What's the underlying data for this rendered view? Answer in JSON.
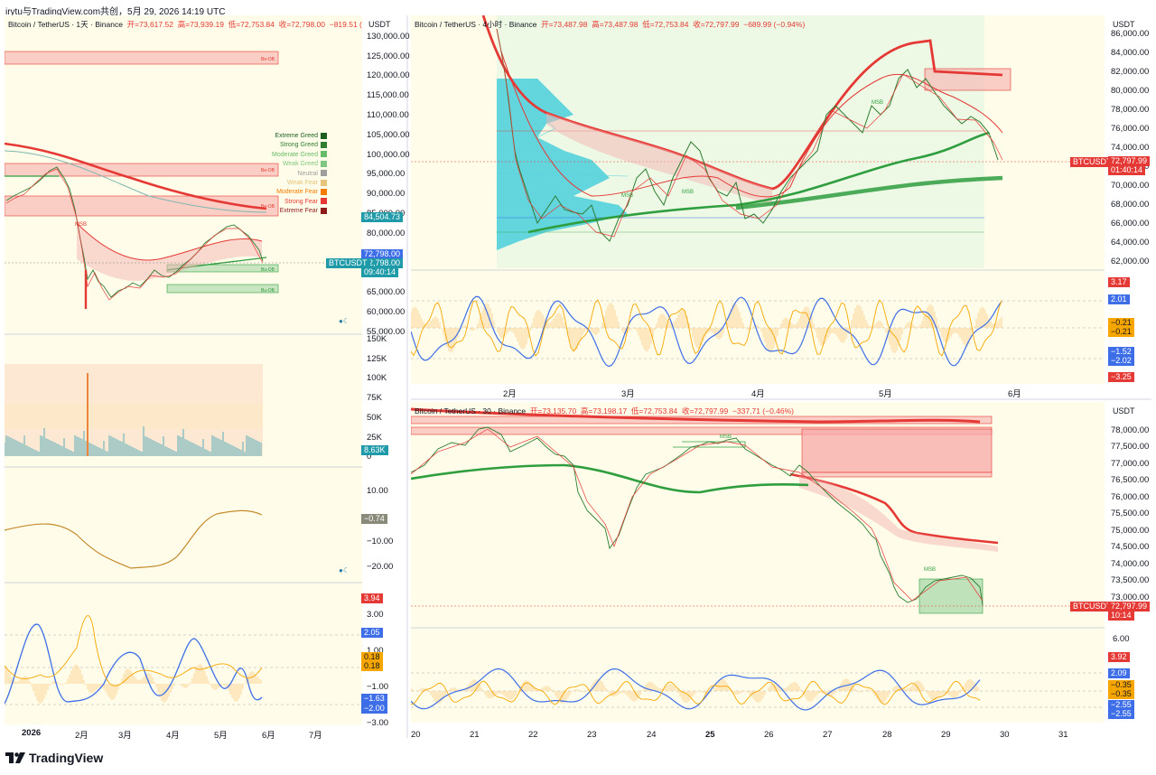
{
  "header": {
    "text": "irytu与TradingView.com共创，5月 29, 2026 14:19 UTC"
  },
  "brand": {
    "name": "TradingView",
    "icon": "tradingview-logo-icon"
  },
  "colors": {
    "bg": "#fffde9",
    "red": "#e53935",
    "green": "#2e9e3f",
    "blue": "#3d6ee8",
    "orange": "#f7a600",
    "teal": "#26c6da"
  },
  "left_chart": {
    "title_pre": "Bitcoin / TetherUS · 1天 · Binance",
    "o": "开=73,617.52",
    "h": "高=73,939.19",
    "l": "低=72,753.84",
    "c": "收=72,798.00",
    "chg": "−819.51 (−1.11%)",
    "currency": "USDT",
    "price_ticks": [
      "130,000.00",
      "125,000.00",
      "120,000.00",
      "115,000.00",
      "110,000.00",
      "105,000.00",
      "100,000.00",
      "95,000.00",
      "90,000.00",
      "85,000.00",
      "80,000.00",
      "65,000.00",
      "60,000.00",
      "55,000.00"
    ],
    "badge_84": "84,504.73",
    "badge_price": "72,798.00",
    "badge_price2": "72,798.00",
    "badge_time": "09:40:14",
    "badge_sym": "BTCUSDT",
    "fg_legend": [
      {
        "label": "Extreme Greed",
        "color": "#1b5e20"
      },
      {
        "label": "Strong Greed",
        "color": "#2e7d32"
      },
      {
        "label": "Moderate Greed",
        "color": "#66bb6a"
      },
      {
        "label": "Weak Greed",
        "color": "#81c784"
      },
      {
        "label": "Neutral",
        "color": "#9e9e9e"
      },
      {
        "label": "Weak Fear",
        "color": "#e6c27a"
      },
      {
        "label": "Moderate Fear",
        "color": "#f57c00"
      },
      {
        "label": "Strong Fear",
        "color": "#e53935"
      },
      {
        "label": "Extreme Fear",
        "color": "#8e1a1a"
      }
    ],
    "bear_ob_label": "Be-OB",
    "bull_ob_label": "Bu-OB",
    "vol_ticks": [
      "150K",
      "125K",
      "100K",
      "75K",
      "50K",
      "25K",
      "0"
    ],
    "vol_badge": "8.63K",
    "osc_ticks": [
      "10.00",
      "−10.00",
      "−20.00"
    ],
    "osc_badge": "−0.74",
    "rsi_ticks": [
      "3.00",
      "1.00",
      "−1.00",
      "−3.00"
    ],
    "rsi_badges": [
      "3.94",
      "2.05",
      "0.18",
      "0.18",
      "−1.63",
      "−2.00"
    ],
    "x_labels": [
      "2026",
      "2月",
      "3月",
      "4月",
      "5月",
      "6月",
      "7月"
    ]
  },
  "top_right_chart": {
    "title_pre": "Bitcoin / TetherUS · 4小时 · Binance",
    "o": "开=73,487.98",
    "h": "高=73,487.98",
    "l": "低=72,753.84",
    "c": "收=72,797.99",
    "chg": "−689.99 (−0.94%)",
    "currency": "USDT",
    "price_ticks": [
      "86,000.00",
      "84,000.00",
      "82,000.00",
      "80,000.00",
      "78,000.00",
      "76,000.00",
      "74,000.00",
      "72,000.00",
      "70,000.00",
      "68,000.00",
      "66,000.00",
      "64,000.00",
      "62,000.00"
    ],
    "badge_sym": "BTCUSDT",
    "badge_price": "72,797.99",
    "badge_time": "01:40:14",
    "msb": "MSB",
    "osc_badges": [
      "3.17",
      "2.01",
      "−0.21",
      "−0.21",
      "−1.52",
      "−2.02",
      "−3.25"
    ],
    "x_labels": [
      "2月",
      "3月",
      "4月",
      "5月",
      "6月"
    ]
  },
  "bottom_right_chart": {
    "title_pre": "Bitcoin / TetherUS · 30 · Binance",
    "o": "开=73,135.70",
    "h": "高=73,198.17",
    "l": "低=72,753.84",
    "c": "收=72,797.99",
    "chg": "−337.71 (−0.46%)",
    "currency": "USDT",
    "price_ticks": [
      "78,000.00",
      "77,500.00",
      "77,000.00",
      "76,500.00",
      "76,000.00",
      "75,500.00",
      "75,000.00",
      "74,500.00",
      "74,000.00",
      "73,500.00",
      "73,000.00"
    ],
    "badge_sym": "BTCUSDT",
    "badge_price": "72,797.99",
    "badge_time": "10:14",
    "osc_tick": "6.00",
    "osc_badges": [
      "3.92",
      "2.09",
      "−0.35",
      "−0.35",
      "−2.55",
      "−2.55"
    ],
    "x_labels": [
      "20",
      "21",
      "22",
      "23",
      "24",
      "25",
      "26",
      "27",
      "28",
      "29",
      "30",
      "31"
    ]
  }
}
